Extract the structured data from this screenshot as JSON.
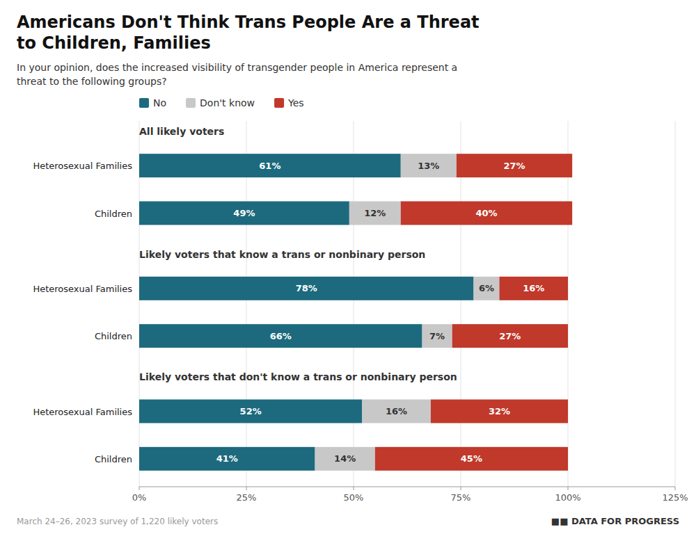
{
  "chart_data": {
    "type": "bar",
    "orientation": "horizontal",
    "stacked": true,
    "data_labels": true,
    "grid": true,
    "legend": "top",
    "title": "Americans Don't Think Trans People Are a Threat\nto Children, Families",
    "subtitle": "In your opinion, does the increased visibility of transgender people in America represent a\nthreat to the following groups?",
    "annotations": [
      "March 24–26, 2023 survey of 1,220 likely voters",
      "■■ DATA FOR PROGRESS"
    ],
    "categories": [
      "Heterosexual Families",
      "Children",
      "Heterosexual Families",
      "Children",
      "Heterosexual Families",
      "Children"
    ],
    "category_groups": [
      "All likely voters",
      "All likely voters",
      "Likely voters that know a trans or nonbinary person",
      "Likely voters that know a trans or nonbinary person",
      "Likely voters that don't know a trans or nonbinary person",
      "Likely voters that don't know a trans or nonbinary person"
    ],
    "series": [
      {
        "name": "No",
        "color": "#1d6a7e",
        "values": [
          61,
          49,
          78,
          66,
          52,
          41
        ],
        "value_labels": [
          "61%",
          "49%",
          "78%",
          "66%",
          "52%",
          "41%"
        ]
      },
      {
        "name": "Don't know",
        "color": "#c8c8c8",
        "values": [
          13,
          12,
          6,
          7,
          16,
          14
        ],
        "value_labels": [
          "13%",
          "12%",
          "6%",
          "7%",
          "16%",
          "14%"
        ]
      },
      {
        "name": "Yes",
        "color": "#c0392b",
        "values": [
          27,
          40,
          16,
          27,
          32,
          45
        ],
        "value_labels": [
          "27%",
          "40%",
          "16%",
          "27%",
          "32%",
          "45%"
        ]
      }
    ],
    "xlim": [
      0,
      125
    ],
    "xticks": [
      {
        "value": 0,
        "label": "0%"
      },
      {
        "value": 25,
        "label": "25%"
      },
      {
        "value": 50,
        "label": "50%"
      },
      {
        "value": 75,
        "label": "75%"
      },
      {
        "value": 100,
        "label": "100%"
      },
      {
        "value": 125,
        "label": "125%"
      }
    ]
  }
}
